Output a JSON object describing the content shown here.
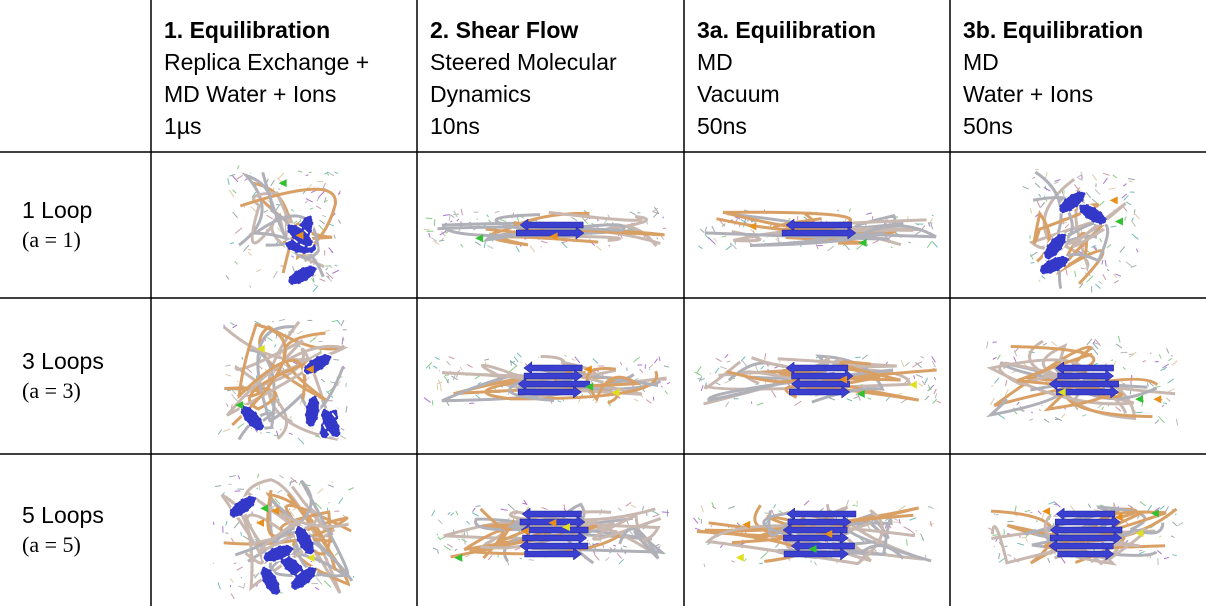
{
  "table": {
    "columns": [
      {
        "title": "1. Equilibration",
        "lines": [
          "Replica Exchange +",
          "MD Water + Ions",
          "1µs"
        ]
      },
      {
        "title": "2. Shear Flow",
        "lines": [
          "Steered Molecular",
          "Dynamics",
          "10ns"
        ]
      },
      {
        "title": "3a. Equilibration",
        "lines": [
          "MD",
          "Vacuum",
          "50ns"
        ]
      },
      {
        "title": "3b. Equilibration",
        "lines": [
          "MD",
          "Water + Ions",
          "50ns"
        ]
      }
    ],
    "rows": [
      {
        "label": "1 Loop",
        "param": "(a = 1)"
      },
      {
        "label": "3 Loops",
        "param": "(a = 3)"
      },
      {
        "label": "5 Loops",
        "param": "(a = 5)"
      }
    ]
  }
}
